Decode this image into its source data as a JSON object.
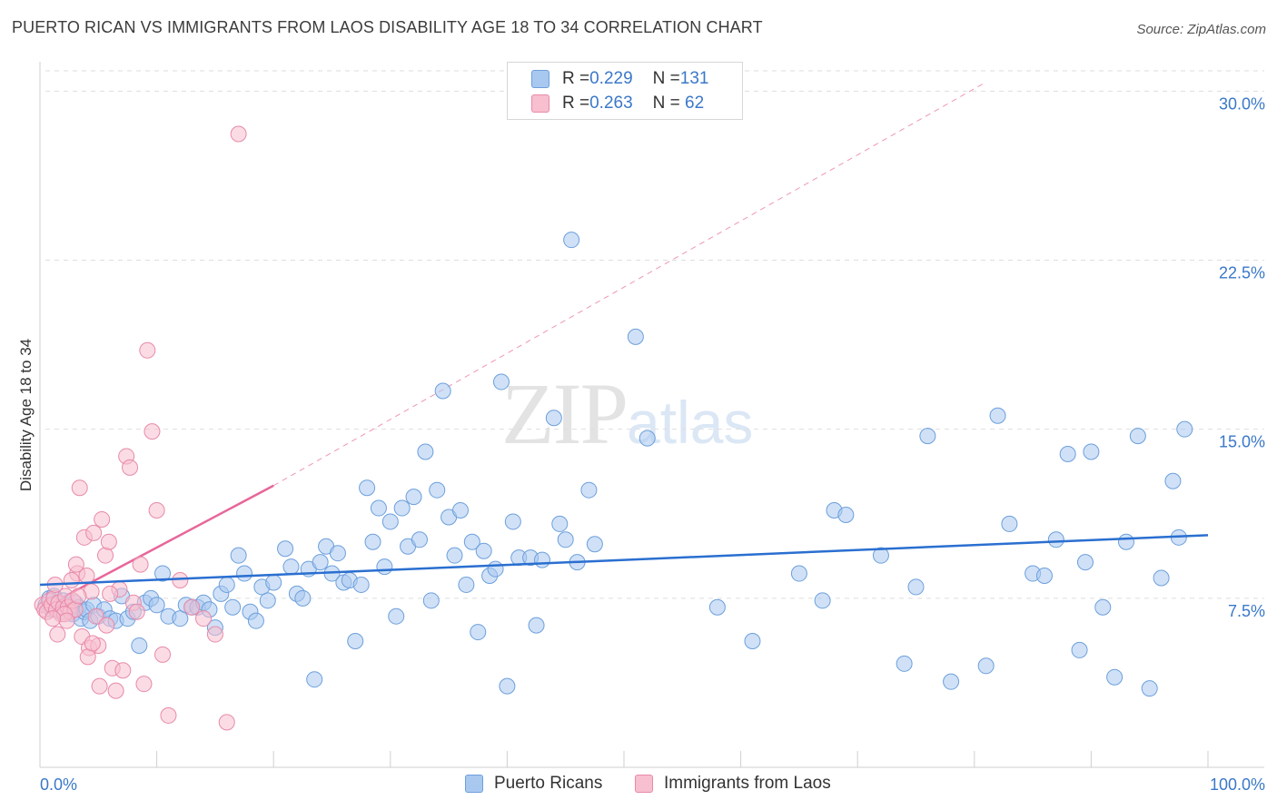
{
  "title": "PUERTO RICAN VS IMMIGRANTS FROM LAOS DISABILITY AGE 18 TO 34 CORRELATION CHART",
  "source": "Source: ZipAtlas.com",
  "watermark": {
    "zip": "ZIP",
    "atlas": "atlas"
  },
  "legend": {
    "rows": [
      {
        "r_label": "R = ",
        "r_value": "0.229",
        "n_label": "N = ",
        "n_value": "131",
        "color": "#a9c8f0",
        "border": "#6c9fdc"
      },
      {
        "r_label": "R = ",
        "r_value": "0.263",
        "n_label": "N = ",
        "n_value": " 62",
        "color": "#f7bfd0",
        "border": "#e88aa8"
      }
    ]
  },
  "bottom_legend": [
    {
      "label": "Puerto Ricans",
      "color": "#a9c8f0",
      "border": "#6c9fdc"
    },
    {
      "label": "Immigrants from Laos",
      "color": "#f7bfd0",
      "border": "#e88aa8"
    }
  ],
  "chart_data": {
    "type": "scatter",
    "title": "PUERTO RICAN VS IMMIGRANTS FROM LAOS DISABILITY AGE 18 TO 34 CORRELATION CHART",
    "xlabel": "",
    "ylabel": "Disability Age 18 to 34",
    "xlim": [
      0,
      100
    ],
    "ylim": [
      0,
      30.9
    ],
    "x_tick_labels": [
      "0.0%",
      "100.0%"
    ],
    "y_ticks": [
      7.5,
      15.0,
      22.5,
      30.0
    ],
    "y_tick_labels": [
      "7.5%",
      "15.0%",
      "22.5%",
      "30.0%"
    ],
    "grid": true,
    "series": [
      {
        "name": "Puerto Ricans",
        "color": "#a9c8f0",
        "edge": "#6c9fdc",
        "trend": {
          "x": [
            0,
            100
          ],
          "y": [
            8.1,
            10.3
          ],
          "color": "#2a6fd0"
        },
        "points": [
          [
            0.5,
            7.2
          ],
          [
            0.8,
            7.5
          ],
          [
            1.0,
            7.0
          ],
          [
            1.2,
            7.6
          ],
          [
            1.4,
            7.3
          ],
          [
            1.6,
            7.1
          ],
          [
            1.8,
            6.9
          ],
          [
            2.0,
            7.4
          ],
          [
            2.2,
            7.2
          ],
          [
            2.5,
            7.0
          ],
          [
            2.8,
            6.8
          ],
          [
            3.0,
            7.3
          ],
          [
            3.3,
            7.1
          ],
          [
            3.5,
            6.6
          ],
          [
            3.8,
            6.9
          ],
          [
            4.0,
            7.0
          ],
          [
            4.3,
            6.5
          ],
          [
            4.6,
            7.2
          ],
          [
            5.0,
            6.7
          ],
          [
            5.5,
            7.0
          ],
          [
            6.0,
            6.6
          ],
          [
            6.5,
            6.5
          ],
          [
            7.0,
            7.6
          ],
          [
            7.5,
            6.6
          ],
          [
            8.0,
            6.9
          ],
          [
            8.5,
            5.4
          ],
          [
            9.0,
            7.3
          ],
          [
            9.5,
            7.5
          ],
          [
            10.0,
            7.2
          ],
          [
            10.5,
            8.6
          ],
          [
            11.0,
            6.7
          ],
          [
            12.0,
            6.6
          ],
          [
            12.5,
            7.2
          ],
          [
            13.0,
            7.1
          ],
          [
            13.5,
            7.1
          ],
          [
            14.0,
            7.3
          ],
          [
            14.5,
            7.0
          ],
          [
            15.0,
            6.2
          ],
          [
            15.5,
            7.7
          ],
          [
            16.0,
            8.1
          ],
          [
            16.5,
            7.1
          ],
          [
            17.0,
            9.4
          ],
          [
            17.5,
            8.6
          ],
          [
            18.0,
            6.9
          ],
          [
            18.5,
            6.5
          ],
          [
            19.0,
            8.0
          ],
          [
            19.5,
            7.4
          ],
          [
            20.0,
            8.2
          ],
          [
            21.0,
            9.7
          ],
          [
            21.5,
            8.9
          ],
          [
            22.0,
            7.7
          ],
          [
            22.5,
            7.5
          ],
          [
            23.0,
            8.8
          ],
          [
            23.5,
            3.9
          ],
          [
            24.0,
            9.1
          ],
          [
            24.5,
            9.8
          ],
          [
            25.0,
            8.6
          ],
          [
            25.5,
            9.5
          ],
          [
            26.0,
            8.2
          ],
          [
            26.5,
            8.3
          ],
          [
            27.0,
            5.6
          ],
          [
            27.5,
            8.1
          ],
          [
            28.0,
            12.4
          ],
          [
            28.5,
            10.0
          ],
          [
            29.0,
            11.5
          ],
          [
            29.5,
            8.9
          ],
          [
            30.0,
            10.9
          ],
          [
            30.5,
            6.7
          ],
          [
            31.0,
            11.5
          ],
          [
            31.5,
            9.8
          ],
          [
            32.0,
            12.0
          ],
          [
            32.5,
            10.1
          ],
          [
            33.0,
            14.0
          ],
          [
            33.5,
            7.4
          ],
          [
            34.0,
            12.3
          ],
          [
            34.5,
            16.7
          ],
          [
            35.0,
            11.1
          ],
          [
            35.5,
            9.4
          ],
          [
            36.0,
            11.4
          ],
          [
            36.5,
            8.1
          ],
          [
            37.0,
            10.0
          ],
          [
            37.5,
            6.0
          ],
          [
            38.0,
            9.6
          ],
          [
            38.5,
            8.5
          ],
          [
            39.0,
            8.8
          ],
          [
            39.5,
            17.1
          ],
          [
            40.0,
            3.6
          ],
          [
            40.5,
            10.9
          ],
          [
            41.0,
            9.3
          ],
          [
            42.0,
            9.3
          ],
          [
            42.5,
            6.3
          ],
          [
            43.0,
            9.2
          ],
          [
            44.0,
            15.5
          ],
          [
            44.5,
            10.8
          ],
          [
            45.0,
            10.1
          ],
          [
            45.5,
            23.4
          ],
          [
            46.0,
            9.1
          ],
          [
            47.0,
            12.3
          ],
          [
            47.5,
            9.9
          ],
          [
            51.0,
            19.1
          ],
          [
            52.0,
            14.6
          ],
          [
            58.0,
            7.1
          ],
          [
            61.0,
            5.6
          ],
          [
            65.0,
            8.6
          ],
          [
            67.0,
            7.4
          ],
          [
            68.0,
            11.4
          ],
          [
            69.0,
            11.2
          ],
          [
            72.0,
            9.4
          ],
          [
            74.0,
            4.6
          ],
          [
            75.0,
            8.0
          ],
          [
            76.0,
            14.7
          ],
          [
            78.0,
            3.8
          ],
          [
            81.0,
            4.5
          ],
          [
            82.0,
            15.6
          ],
          [
            83.0,
            10.8
          ],
          [
            85.0,
            8.6
          ],
          [
            86.0,
            8.5
          ],
          [
            87.0,
            10.1
          ],
          [
            88.0,
            13.9
          ],
          [
            89.0,
            5.2
          ],
          [
            89.5,
            9.1
          ],
          [
            90.0,
            14.0
          ],
          [
            91.0,
            7.1
          ],
          [
            92.0,
            4.0
          ],
          [
            93.0,
            10.0
          ],
          [
            94.0,
            14.7
          ],
          [
            95.0,
            3.5
          ],
          [
            96.0,
            8.4
          ],
          [
            97.0,
            12.7
          ],
          [
            97.5,
            10.2
          ],
          [
            98.0,
            15.0
          ]
        ]
      },
      {
        "name": "Immigrants from Laos",
        "color": "#f7bfd0",
        "edge": "#e88aa8",
        "trend": {
          "x": [
            0,
            20
          ],
          "y": [
            7.0,
            12.5
          ],
          "color": "#e8669a",
          "extended_to": [
            81,
            30.4
          ]
        },
        "points": [
          [
            0.2,
            7.2
          ],
          [
            0.4,
            7.0
          ],
          [
            0.6,
            6.9
          ],
          [
            0.8,
            7.4
          ],
          [
            1.0,
            7.2
          ],
          [
            1.2,
            7.5
          ],
          [
            1.4,
            7.0
          ],
          [
            1.6,
            7.3
          ],
          [
            1.8,
            6.8
          ],
          [
            2.0,
            7.1
          ],
          [
            2.2,
            7.6
          ],
          [
            2.4,
            7.1
          ],
          [
            2.6,
            6.9
          ],
          [
            2.8,
            7.4
          ],
          [
            3.0,
            7.0
          ],
          [
            3.2,
            8.6
          ],
          [
            3.4,
            12.4
          ],
          [
            3.6,
            5.8
          ],
          [
            3.8,
            10.2
          ],
          [
            4.0,
            8.5
          ],
          [
            4.2,
            5.3
          ],
          [
            4.4,
            7.8
          ],
          [
            4.6,
            10.4
          ],
          [
            4.8,
            6.7
          ],
          [
            5.0,
            5.4
          ],
          [
            5.3,
            11.0
          ],
          [
            5.6,
            9.4
          ],
          [
            5.9,
            10.0
          ],
          [
            6.2,
            4.4
          ],
          [
            6.5,
            3.4
          ],
          [
            6.8,
            7.9
          ],
          [
            7.1,
            4.3
          ],
          [
            7.4,
            13.8
          ],
          [
            7.7,
            13.3
          ],
          [
            8.0,
            7.3
          ],
          [
            8.3,
            6.9
          ],
          [
            8.6,
            9.0
          ],
          [
            8.9,
            3.7
          ],
          [
            9.2,
            18.5
          ],
          [
            9.6,
            14.9
          ],
          [
            10.0,
            11.4
          ],
          [
            10.5,
            5.0
          ],
          [
            11.0,
            2.3
          ],
          [
            12.0,
            8.3
          ],
          [
            13.0,
            7.1
          ],
          [
            14.0,
            6.6
          ],
          [
            15.0,
            5.9
          ],
          [
            16.0,
            2.0
          ],
          [
            17.0,
            28.1
          ],
          [
            2.1,
            6.8
          ],
          [
            2.3,
            6.5
          ],
          [
            1.1,
            6.6
          ],
          [
            1.3,
            8.1
          ],
          [
            1.5,
            5.9
          ],
          [
            2.7,
            8.3
          ],
          [
            3.1,
            9.0
          ],
          [
            3.3,
            7.6
          ],
          [
            4.1,
            4.9
          ],
          [
            4.5,
            5.5
          ],
          [
            5.1,
            3.6
          ],
          [
            5.7,
            6.3
          ],
          [
            6.0,
            7.7
          ]
        ]
      }
    ]
  }
}
